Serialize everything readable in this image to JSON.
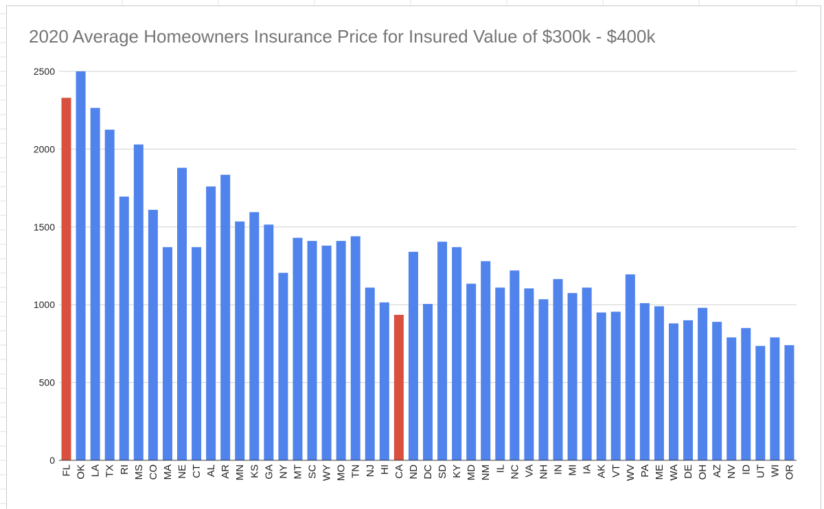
{
  "chart_data": {
    "type": "bar",
    "title": "2020 Average Homeowners Insurance Price for Insured Value of $300k - $400k",
    "xlabel": "",
    "ylabel": "",
    "ylim": [
      0,
      2500
    ],
    "yticks": [
      0,
      500,
      1000,
      1500,
      2000,
      2500
    ],
    "grid": true,
    "legend": "none",
    "colors": {
      "default": "#5083ec",
      "highlight": "#d9503f",
      "grid": "#cfcfcf",
      "axis": "#333333"
    },
    "highlighted": [
      "FL",
      "CA"
    ],
    "categories": [
      "FL",
      "OK",
      "LA",
      "TX",
      "RI",
      "MS",
      "CO",
      "MA",
      "NE",
      "CT",
      "AL",
      "AR",
      "MN",
      "KS",
      "GA",
      "NY",
      "MT",
      "SC",
      "WY",
      "MO",
      "TN",
      "NJ",
      "HI",
      "CA",
      "ND",
      "DC",
      "SD",
      "KY",
      "MD",
      "NM",
      "IL",
      "NC",
      "VA",
      "NH",
      "IN",
      "MI",
      "IA",
      "AK",
      "VT",
      "WV",
      "PA",
      "ME",
      "WA",
      "DE",
      "OH",
      "AZ",
      "NV",
      "ID",
      "UT",
      "WI",
      "OR"
    ],
    "values": [
      2330,
      2500,
      2265,
      2125,
      1695,
      2030,
      1610,
      1370,
      1880,
      1370,
      1760,
      1835,
      1535,
      1595,
      1515,
      1205,
      1430,
      1410,
      1380,
      1410,
      1440,
      1110,
      1015,
      935,
      1340,
      1005,
      1405,
      1370,
      1135,
      1280,
      1110,
      1220,
      1105,
      1035,
      1165,
      1075,
      1110,
      950,
      955,
      1195,
      1010,
      990,
      880,
      900,
      980,
      890,
      790,
      850,
      735,
      790,
      740
    ]
  }
}
